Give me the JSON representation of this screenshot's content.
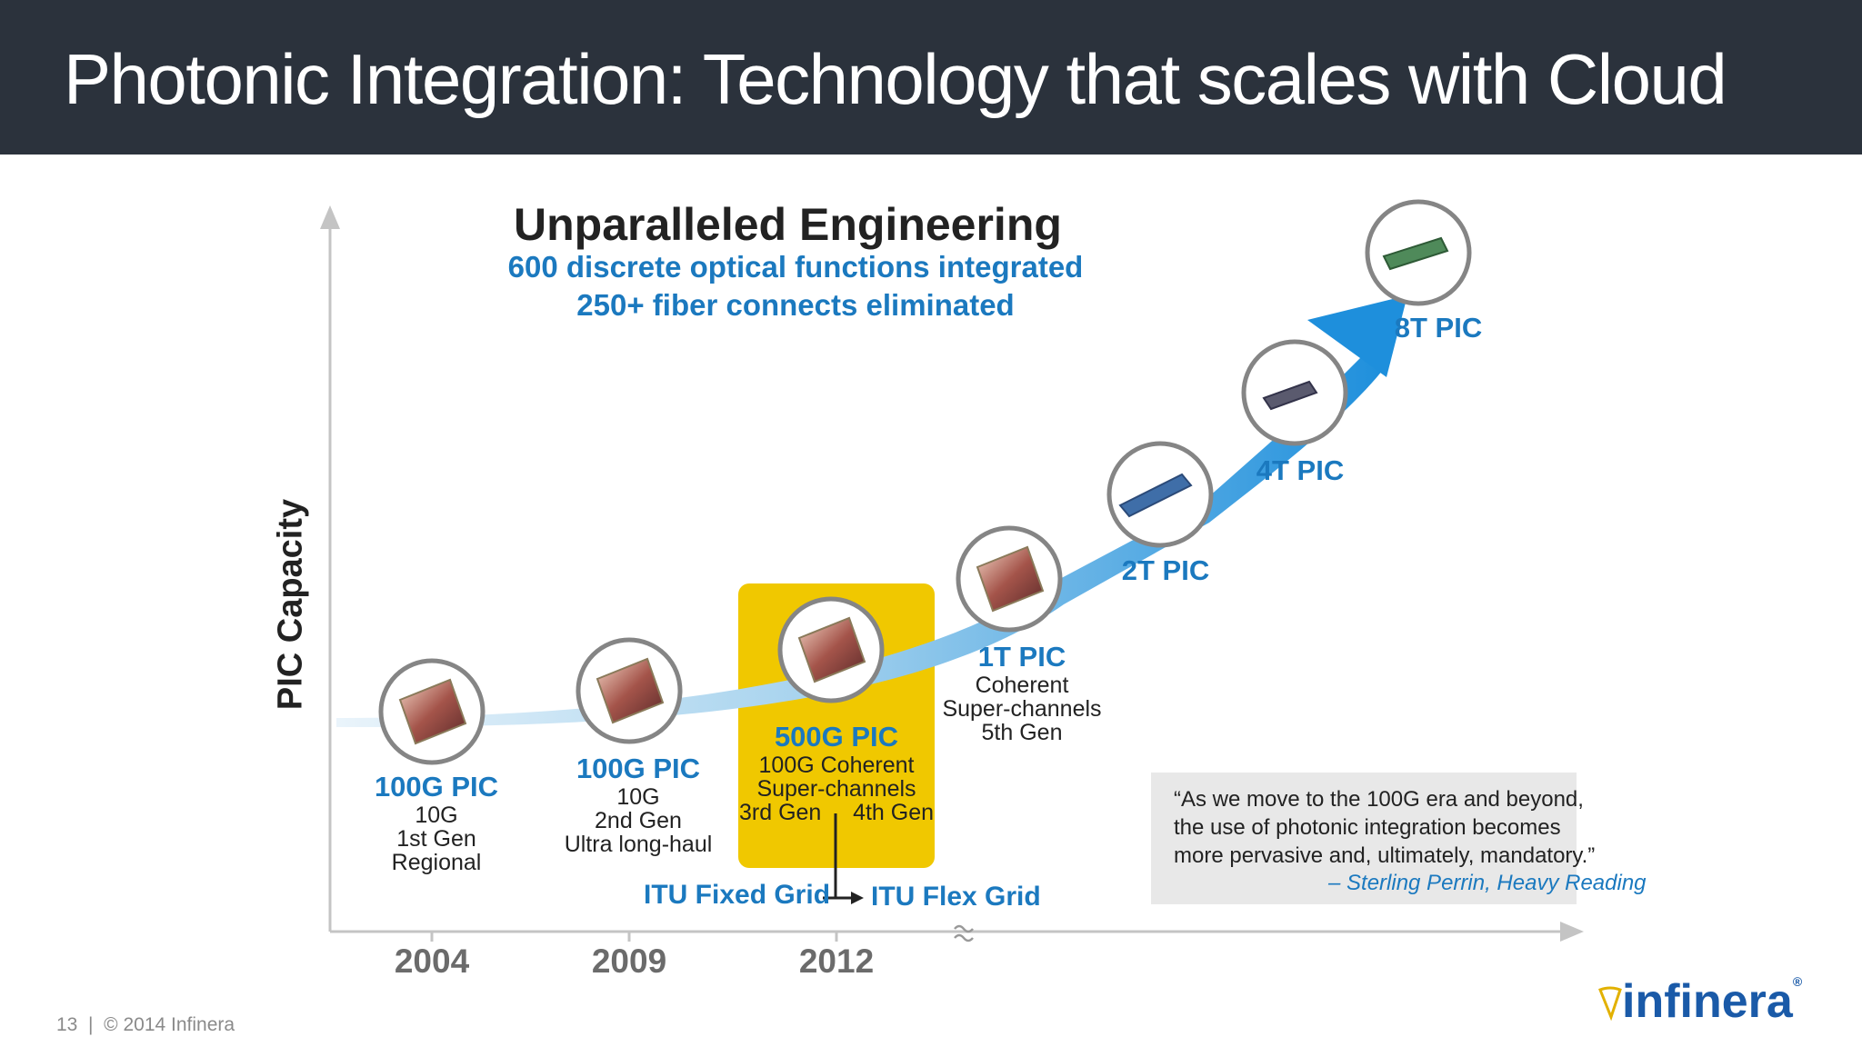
{
  "slide": {
    "title": "Photonic Integration: Technology that scales with Cloud"
  },
  "engineering": {
    "heading": "Unparalleled Engineering",
    "line1": "600 discrete optical functions integrated",
    "line2": "250+ fiber connects eliminated"
  },
  "axis": {
    "y_label": "PIC Capacity",
    "years": [
      "2004",
      "2009",
      "2012"
    ]
  },
  "pics": [
    {
      "name": "100G PIC",
      "lines": [
        "10G",
        "1st Gen",
        "Regional"
      ]
    },
    {
      "name": "100G PIC",
      "lines": [
        "10G",
        "2nd Gen",
        "Ultra long-haul"
      ]
    },
    {
      "name": "500G PIC",
      "lines": [
        "100G Coherent",
        "Super-channels",
        "3rd Gen",
        "4th Gen"
      ]
    },
    {
      "name": "1T PIC",
      "lines": [
        "Coherent",
        "Super-channels",
        "5th Gen"
      ]
    },
    {
      "name": "2T PIC",
      "lines": []
    },
    {
      "name": "4T PIC",
      "lines": []
    },
    {
      "name": "8T PIC",
      "lines": []
    }
  ],
  "grid": {
    "fixed": "ITU Fixed Grid",
    "flex": "ITU Flex Grid"
  },
  "quote": {
    "line1": "“As we move to the 100G era and beyond,",
    "line2": "the use of photonic integration becomes",
    "line3": "more pervasive and, ultimately, mandatory.”",
    "attribution": "– Sterling Perrin, Heavy Reading"
  },
  "footer": {
    "page": "13",
    "separator": "|",
    "copyright": "© 2014 Infinera"
  },
  "logo": {
    "text": "infinera",
    "registered": "®"
  }
}
